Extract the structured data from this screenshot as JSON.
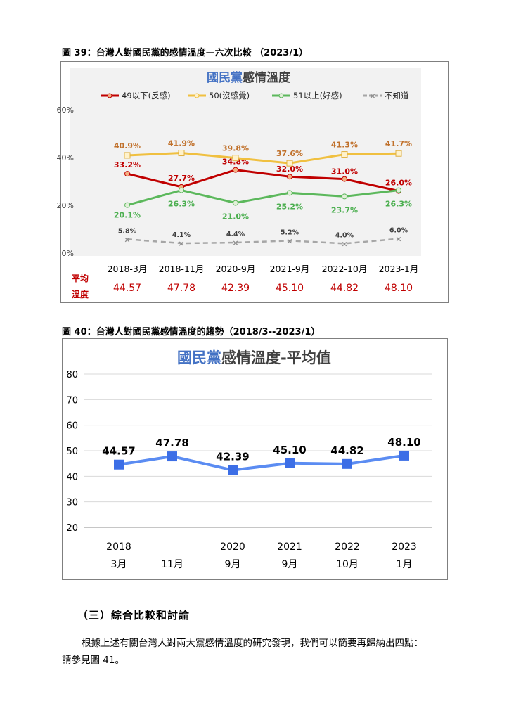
{
  "fig39": {
    "caption": "圖 39：台灣人對國民黨的感情溫度—六次比較 （2023/1）",
    "title_blue": "國民黨",
    "title_rest": "感情溫度",
    "categories": [
      "2018-3月",
      "2018-11月",
      "2020-9月",
      "2021-9月",
      "2022-10月",
      "2023-1月"
    ],
    "y_ticks": [
      "0%",
      "20%",
      "40%",
      "60%"
    ],
    "avg_label_1": "平均",
    "avg_label_2": "溫度",
    "averages": [
      "44.57",
      "47.78",
      "42.39",
      "45.10",
      "44.82",
      "48.10"
    ]
  },
  "fig40": {
    "caption": "圖 40：台灣人對國民黨感情溫度的趨勢（2018/3--2023/1）",
    "title_blue": "國民黨",
    "title_rest": "感情溫度-平均值",
    "y_ticks": [
      "20",
      "30",
      "40",
      "50",
      "60",
      "70",
      "80"
    ],
    "x_years": [
      "2018",
      "",
      "2020",
      "2021",
      "2022",
      "2023"
    ],
    "x_months": [
      "3月",
      "11月",
      "9月",
      "9月",
      "10月",
      "1月"
    ]
  },
  "section_title": "（三）綜合比較和討論",
  "paragraph_line1": "根據上述有關台灣人對兩大黨感情溫度的研究發現，我們可以簡要再歸納出四點：",
  "paragraph_line2": "請參見圖 41。",
  "colors": {
    "red": "#c00000",
    "yellow": "#f0c040",
    "green": "#5cb85c",
    "gray": "#a6a6a6",
    "blue": "#4472f0",
    "label_red": "#c00000",
    "label_orange": "#c0702a",
    "label_green": "#4caf50",
    "label_gray": "#404040"
  },
  "chart_data": [
    {
      "type": "line",
      "title": "國民黨感情溫度",
      "categories": [
        "2018-3月",
        "2018-11月",
        "2020-9月",
        "2021-9月",
        "2022-10月",
        "2023-1月"
      ],
      "ylim": [
        0,
        60
      ],
      "y_unit": "%",
      "legend_position": "top",
      "grid": false,
      "series": [
        {
          "name": "49以下(反感)",
          "values": [
            33.2,
            27.7,
            34.8,
            32.0,
            31.0,
            26.0
          ],
          "labels": [
            "33.2%",
            "27.7%",
            "34.8%",
            "32.0%",
            "31.0%",
            "26.0%"
          ],
          "color": "#c00000"
        },
        {
          "name": "50(沒感覺)",
          "values": [
            40.9,
            41.9,
            39.8,
            37.6,
            41.3,
            41.7
          ],
          "labels": [
            "40.9%",
            "41.9%",
            "39.8%",
            "37.6%",
            "41.3%",
            "41.7%"
          ],
          "color": "#f0c040"
        },
        {
          "name": "51以上(好感)",
          "values": [
            20.1,
            26.3,
            21.0,
            25.2,
            23.7,
            26.3
          ],
          "labels": [
            "20.1%",
            "26.3%",
            "21.0%",
            "25.2%",
            "23.7%",
            "26.3%"
          ],
          "color": "#5cb85c"
        },
        {
          "name": "不知道",
          "values": [
            5.8,
            4.1,
            4.4,
            5.2,
            4.0,
            6.0
          ],
          "labels": [
            "5.8%",
            "4.1%",
            "4.4%",
            "5.2%",
            "4.0%",
            "6.0%"
          ],
          "color": "#a6a6a6"
        }
      ]
    },
    {
      "type": "line",
      "title": "國民黨感情溫度-平均值",
      "categories": [
        "2018 3月",
        "11月",
        "2020 9月",
        "2021 9月",
        "2022 10月",
        "2023 1月"
      ],
      "ylim": [
        20,
        80
      ],
      "grid": true,
      "series": [
        {
          "values": [
            44.57,
            47.78,
            42.39,
            45.1,
            44.82,
            48.1
          ],
          "labels": [
            "44.57",
            "47.78",
            "42.39",
            "45.10",
            "44.82",
            "48.10"
          ],
          "color": "#4472f0"
        }
      ]
    }
  ]
}
